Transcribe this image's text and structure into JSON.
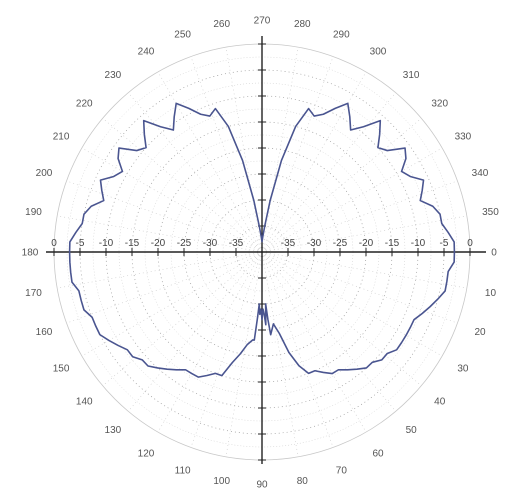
{
  "colors": {
    "background": "#ffffff",
    "grid": "#c8c8c8",
    "grid_dotted": "#9a9a9a",
    "axis": "#222222",
    "trace": "#4a5590",
    "text": "#555555"
  },
  "chart_data": {
    "type": "polar",
    "title": "",
    "angle_unit": "degrees",
    "angle_zero": "right",
    "angle_direction": "clockwise",
    "angle_labels": [
      {
        "deg": 0,
        "text": "0"
      },
      {
        "deg": 10,
        "text": "10"
      },
      {
        "deg": 20,
        "text": "20"
      },
      {
        "deg": 30,
        "text": "30"
      },
      {
        "deg": 40,
        "text": "40"
      },
      {
        "deg": 50,
        "text": "50"
      },
      {
        "deg": 60,
        "text": "60"
      },
      {
        "deg": 70,
        "text": "70"
      },
      {
        "deg": 80,
        "text": "80"
      },
      {
        "deg": 90,
        "text": "90"
      },
      {
        "deg": 100,
        "text": "100"
      },
      {
        "deg": 110,
        "text": "110"
      },
      {
        "deg": 120,
        "text": "120"
      },
      {
        "deg": 130,
        "text": "130"
      },
      {
        "deg": 140,
        "text": "140"
      },
      {
        "deg": 150,
        "text": "150"
      },
      {
        "deg": 160,
        "text": "160"
      },
      {
        "deg": 170,
        "text": "170"
      },
      {
        "deg": 180,
        "text": "180"
      },
      {
        "deg": 190,
        "text": "190"
      },
      {
        "deg": 200,
        "text": "200"
      },
      {
        "deg": 210,
        "text": "210"
      },
      {
        "deg": 220,
        "text": "220"
      },
      {
        "deg": 230,
        "text": "230"
      },
      {
        "deg": 240,
        "text": "240"
      },
      {
        "deg": 250,
        "text": "250"
      },
      {
        "deg": 260,
        "text": "260"
      },
      {
        "deg": 270,
        "text": "270"
      },
      {
        "deg": 280,
        "text": "280"
      },
      {
        "deg": 290,
        "text": "290"
      },
      {
        "deg": 300,
        "text": "300"
      },
      {
        "deg": 310,
        "text": "310"
      },
      {
        "deg": 320,
        "text": "320"
      },
      {
        "deg": 330,
        "text": "330"
      },
      {
        "deg": 340,
        "text": "340"
      },
      {
        "deg": 350,
        "text": "350"
      }
    ],
    "radial_range": [
      -40,
      0
    ],
    "radial_unit": "dB",
    "radial_ticks": [
      -35,
      -30,
      -25,
      -20,
      -15,
      -10,
      -5,
      0
    ],
    "radial_tick_labels_right": [
      "-35",
      "-30",
      "-25",
      "-20",
      "-15",
      "-10",
      "-5",
      "0"
    ],
    "radial_tick_labels_left": [
      "0",
      "-5",
      "-10",
      "-15",
      "-20",
      "-25",
      "-30",
      "-35"
    ],
    "grid": true,
    "legend": "none",
    "series": [
      {
        "theta": [
          0,
          3,
          6,
          9,
          12,
          15,
          18,
          21,
          24,
          27,
          30,
          33,
          36,
          39,
          42,
          45,
          48,
          51,
          54,
          57,
          60,
          63,
          66,
          69,
          72,
          75,
          78,
          81,
          84,
          85,
          86,
          87,
          88,
          89,
          90,
          91,
          92,
          93,
          94,
          95,
          96,
          99,
          102,
          105,
          108,
          111,
          114,
          117,
          120,
          123,
          126,
          129,
          132,
          135,
          138,
          141,
          144,
          147,
          150,
          153,
          156,
          159,
          162,
          165,
          168,
          171,
          174,
          177,
          180,
          183,
          186,
          189,
          192,
          195,
          198,
          201,
          204,
          207,
          210,
          213,
          216,
          219,
          222,
          225,
          228,
          231,
          234,
          237,
          240,
          243,
          246,
          249,
          252,
          255,
          258,
          261,
          264,
          267,
          270,
          273,
          276,
          279,
          282,
          285,
          288,
          291,
          294,
          297,
          300,
          303,
          306,
          309,
          312,
          315,
          318,
          321,
          324,
          327,
          330,
          333,
          336,
          339,
          342,
          345,
          348,
          351,
          354,
          357
        ],
        "r": [
          -3,
          -3,
          -4,
          -4,
          -4,
          -5,
          -6,
          -7,
          -8,
          -8,
          -8,
          -8,
          -8,
          -9,
          -9,
          -10,
          -10,
          -11,
          -12,
          -13,
          -13,
          -14,
          -15,
          -15,
          -17,
          -20,
          -24,
          -26,
          -24,
          -27,
          -30,
          -26,
          -28,
          -29,
          -27,
          -29,
          -28,
          -30,
          -27,
          -23,
          -23,
          -22,
          -20,
          -18,
          -15,
          -15,
          -14,
          -13,
          -13,
          -13,
          -12,
          -11,
          -10,
          -9,
          -9,
          -8,
          -8,
          -7,
          -6,
          -5,
          -5,
          -5,
          -4,
          -4,
          -4,
          -3,
          -3,
          -3,
          -3,
          -3,
          -4,
          -5,
          -5,
          -6,
          -8,
          -7,
          -6,
          -8,
          -9,
          -7,
          -6,
          -9,
          -10,
          -8,
          -6,
          -9,
          -11,
          -9,
          -7,
          -9,
          -11,
          -12,
          -11,
          -15,
          -22,
          -30,
          -35,
          -37,
          -38,
          -37,
          -35,
          -30,
          -22,
          -15,
          -11,
          -12,
          -11,
          -9,
          -7,
          -9,
          -11,
          -9,
          -6,
          -8,
          -10,
          -9,
          -6,
          -7,
          -9,
          -8,
          -6,
          -7,
          -8,
          -6,
          -5,
          -5,
          -4,
          -3
        ]
      }
    ]
  }
}
